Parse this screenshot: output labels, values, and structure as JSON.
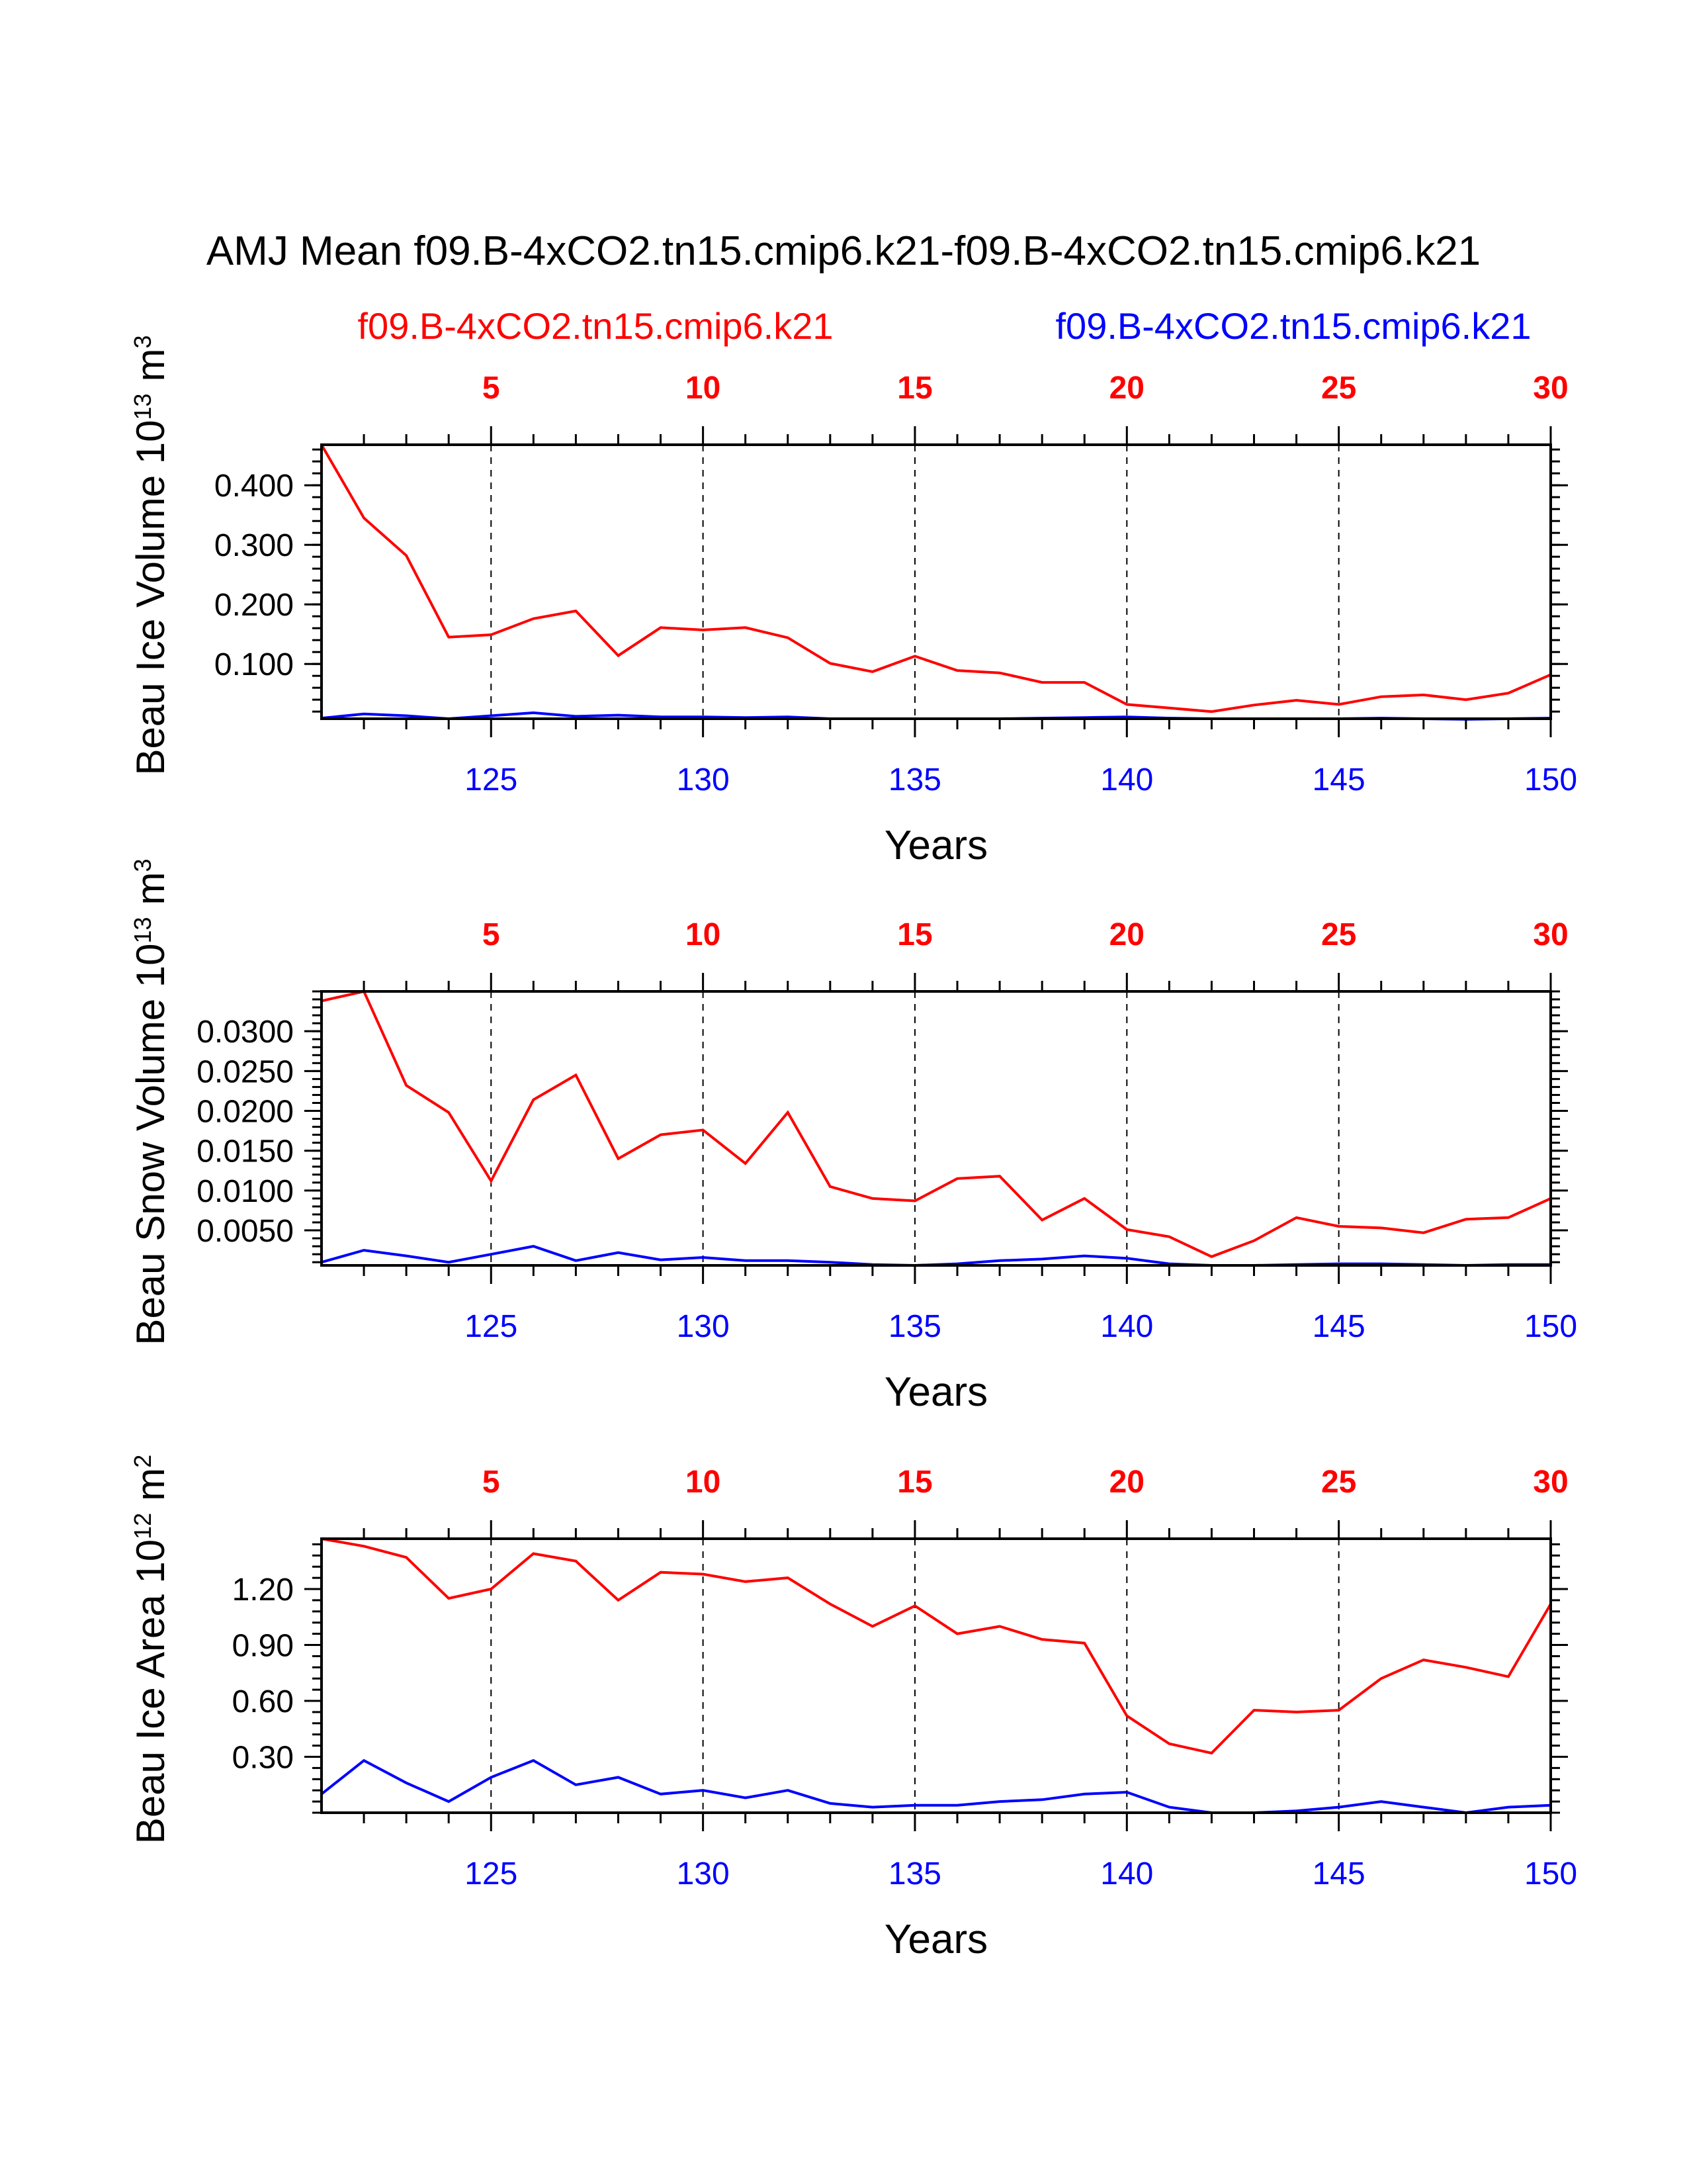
{
  "title": "AMJ Mean f09.B-4xCO2.tn15.cmip6.k21-f09.B-4xCO2.tn15.cmip6.k21",
  "legend": {
    "left_case": "f09.B-4xCO2.tn15.cmip6.k21",
    "right_case": "f09.B-4xCO2.tn15.cmip6.k21"
  },
  "colors": {
    "series1": "#ff0000",
    "series2": "#0000ff",
    "axis": "#000000"
  },
  "chart_data": [
    {
      "type": "line",
      "ylabel_main": "Beau Ice Volume 10",
      "ylabel_sup": "13",
      "ylabel_unit": "m",
      "ylabel_unit_sup": "3",
      "xlabel": "Years",
      "x": [
        121,
        122,
        123,
        124,
        125,
        126,
        127,
        128,
        129,
        130,
        131,
        132,
        133,
        134,
        135,
        136,
        137,
        138,
        139,
        140,
        141,
        142,
        143,
        144,
        145,
        146,
        147,
        148,
        149,
        150
      ],
      "xlim": [
        121,
        150
      ],
      "ylim": [
        0.008,
        0.468
      ],
      "yticks": [
        0.1,
        0.2,
        0.3,
        0.4
      ],
      "ytick_labels": [
        "0.100",
        "0.200",
        "0.300",
        "0.400"
      ],
      "ytick_minor_step": 0.02,
      "bottom_ticks": [
        125,
        130,
        135,
        140,
        145,
        150
      ],
      "top_ticks": [
        5,
        10,
        15,
        20,
        25,
        30
      ],
      "vlines": [
        125,
        130,
        135,
        140,
        145
      ],
      "series": [
        {
          "name": "f09.B-4xCO2.tn15.cmip6.k21",
          "color": "#ff0000",
          "values": [
            0.468,
            0.345,
            0.282,
            0.145,
            0.149,
            0.176,
            0.189,
            0.114,
            0.161,
            0.157,
            0.161,
            0.144,
            0.101,
            0.087,
            0.113,
            0.089,
            0.085,
            0.069,
            0.069,
            0.032,
            0.026,
            0.02,
            0.031,
            0.039,
            0.032,
            0.045,
            0.048,
            0.04,
            0.051,
            0.082
          ]
        },
        {
          "name": "f09.B-4xCO2.tn15.cmip6.k21",
          "color": "#0000ff",
          "values": [
            0.009,
            0.016,
            0.013,
            0.008,
            0.013,
            0.018,
            0.012,
            0.014,
            0.011,
            0.011,
            0.01,
            0.011,
            0.008,
            0.008,
            0.008,
            0.008,
            0.008,
            0.009,
            0.01,
            0.011,
            0.009,
            0.008,
            0.008,
            0.008,
            0.008,
            0.009,
            0.008,
            0.007,
            0.008,
            0.009
          ]
        }
      ]
    },
    {
      "type": "line",
      "ylabel_main": "Beau Snow Volume 10",
      "ylabel_sup": "13",
      "ylabel_unit": "m",
      "ylabel_unit_sup": "3",
      "xlabel": "Years",
      "x": [
        121,
        122,
        123,
        124,
        125,
        126,
        127,
        128,
        129,
        130,
        131,
        132,
        133,
        134,
        135,
        136,
        137,
        138,
        139,
        140,
        141,
        142,
        143,
        144,
        145,
        146,
        147,
        148,
        149,
        150
      ],
      "xlim": [
        121,
        150
      ],
      "ylim": [
        0.0006,
        0.035
      ],
      "yticks": [
        0.005,
        0.01,
        0.015,
        0.02,
        0.025,
        0.03
      ],
      "ytick_labels": [
        "0.0050",
        "0.0100",
        "0.0150",
        "0.0200",
        "0.0250",
        "0.0300"
      ],
      "ytick_minor_step": 0.001,
      "bottom_ticks": [
        125,
        130,
        135,
        140,
        145,
        150
      ],
      "top_ticks": [
        5,
        10,
        15,
        20,
        25,
        30
      ],
      "vlines": [
        125,
        130,
        135,
        140,
        145
      ],
      "series": [
        {
          "name": "f09.B-4xCO2.tn15.cmip6.k21",
          "color": "#ff0000",
          "values": [
            0.0338,
            0.035,
            0.0232,
            0.0198,
            0.0112,
            0.0214,
            0.0245,
            0.014,
            0.017,
            0.0176,
            0.0134,
            0.0198,
            0.0105,
            0.009,
            0.0087,
            0.0115,
            0.0118,
            0.0063,
            0.009,
            0.0051,
            0.0042,
            0.0017,
            0.0037,
            0.0066,
            0.0055,
            0.0053,
            0.0047,
            0.0064,
            0.0066,
            0.009
          ]
        },
        {
          "name": "f09.B-4xCO2.tn15.cmip6.k21",
          "color": "#0000ff",
          "values": [
            0.001,
            0.0025,
            0.0018,
            0.001,
            0.002,
            0.003,
            0.0012,
            0.0022,
            0.0013,
            0.0016,
            0.0012,
            0.0012,
            0.001,
            0.0007,
            0.0006,
            0.0008,
            0.0012,
            0.0014,
            0.0018,
            0.0015,
            0.0008,
            0.0006,
            0.0006,
            0.0007,
            0.0008,
            0.0008,
            0.0007,
            0.0006,
            0.0007,
            0.0007
          ]
        }
      ]
    },
    {
      "type": "line",
      "ylabel_main": "Beau Ice Area 10",
      "ylabel_sup": "12",
      "ylabel_unit": "m",
      "ylabel_unit_sup": "2",
      "xlabel": "Years",
      "x": [
        121,
        122,
        123,
        124,
        125,
        126,
        127,
        128,
        129,
        130,
        131,
        132,
        133,
        134,
        135,
        136,
        137,
        138,
        139,
        140,
        141,
        142,
        143,
        144,
        145,
        146,
        147,
        148,
        149,
        150
      ],
      "xlim": [
        121,
        150
      ],
      "ylim": [
        0.0,
        1.47
      ],
      "yticks": [
        0.3,
        0.6,
        0.9,
        1.2
      ],
      "ytick_labels": [
        "0.30",
        "0.60",
        "0.90",
        "1.20"
      ],
      "ytick_minor_step": 0.06,
      "bottom_ticks": [
        125,
        130,
        135,
        140,
        145,
        150
      ],
      "top_ticks": [
        5,
        10,
        15,
        20,
        25,
        30
      ],
      "vlines": [
        125,
        130,
        135,
        140,
        145
      ],
      "series": [
        {
          "name": "f09.B-4xCO2.tn15.cmip6.k21",
          "color": "#ff0000",
          "values": [
            1.47,
            1.43,
            1.37,
            1.15,
            1.2,
            1.39,
            1.35,
            1.14,
            1.29,
            1.28,
            1.24,
            1.26,
            1.12,
            1.0,
            1.11,
            0.96,
            1.0,
            0.93,
            0.91,
            0.52,
            0.37,
            0.32,
            0.55,
            0.54,
            0.55,
            0.72,
            0.82,
            0.78,
            0.73,
            1.12
          ]
        },
        {
          "name": "f09.B-4xCO2.tn15.cmip6.k21",
          "color": "#0000ff",
          "values": [
            0.1,
            0.28,
            0.16,
            0.06,
            0.19,
            0.28,
            0.15,
            0.19,
            0.1,
            0.12,
            0.08,
            0.12,
            0.05,
            0.03,
            0.04,
            0.04,
            0.06,
            0.07,
            0.1,
            0.11,
            0.03,
            0.0,
            0.0,
            0.01,
            0.03,
            0.06,
            0.03,
            0.0,
            0.03,
            0.04
          ]
        }
      ]
    }
  ]
}
